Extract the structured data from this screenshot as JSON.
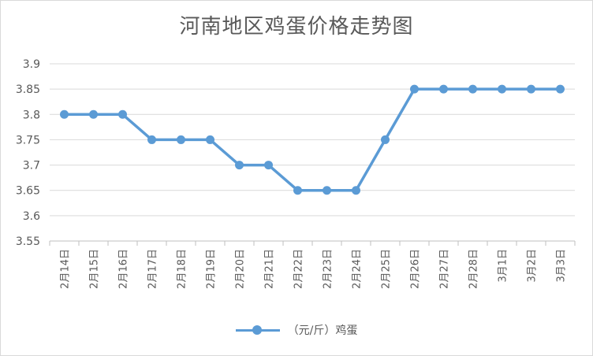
{
  "chart_data": {
    "type": "line",
    "title": "河南地区鸡蛋价格走势图",
    "categories": [
      "2月14日",
      "2月15日",
      "2月16日",
      "2月17日",
      "2月18日",
      "2月19日",
      "2月20日",
      "2月21日",
      "2月22日",
      "2月23日",
      "2月24日",
      "2月25日",
      "2月26日",
      "2月27日",
      "2月28日",
      "3月1日",
      "3月2日",
      "3月3日"
    ],
    "series": [
      {
        "name": "（元/斤）鸡蛋",
        "values": [
          3.8,
          3.8,
          3.8,
          3.75,
          3.75,
          3.75,
          3.7,
          3.7,
          3.65,
          3.65,
          3.65,
          3.75,
          3.85,
          3.85,
          3.85,
          3.85,
          3.85,
          3.85
        ]
      }
    ],
    "yticks": [
      "3.55",
      "3.6",
      "3.65",
      "3.7",
      "3.75",
      "3.8",
      "3.85",
      "3.9"
    ],
    "ylim": [
      3.55,
      3.9
    ],
    "grid": true,
    "legend_position": "bottom",
    "color": "#5b9bd5"
  }
}
